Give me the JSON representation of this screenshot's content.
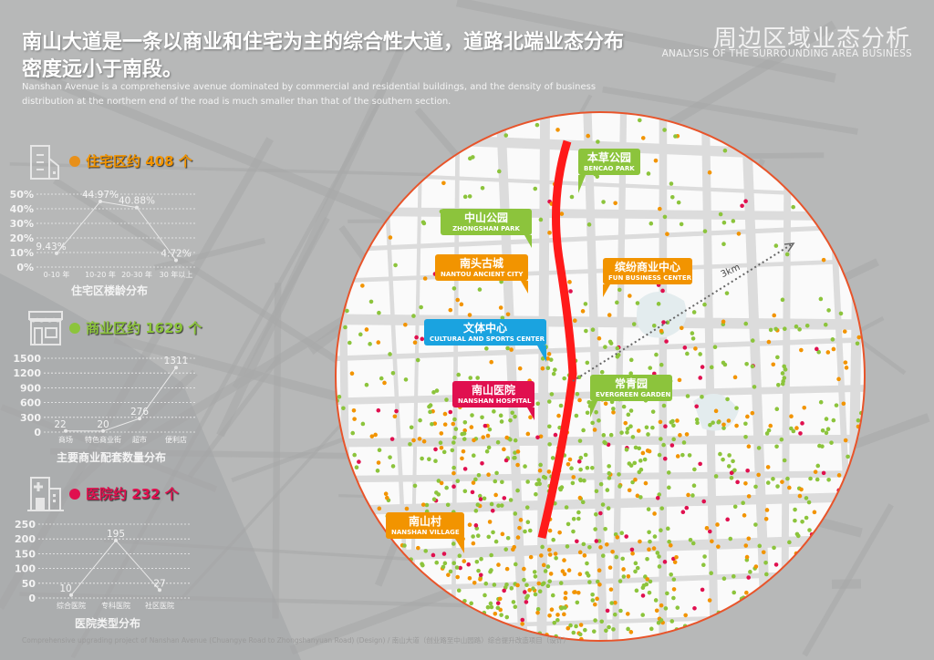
{
  "header": {
    "title": "南山大道是一条以商业和住宅为主的综合性大道，道路北端业态分布密度远小于南段。",
    "subtitle": "Nanshan Avenue is a comprehensive avenue dominated by commercial and residential buildings, and the density of business distribution at the northern end of the road is much smaller than that of the southern section.",
    "section_cn": "周边区域业态分析",
    "section_en": "ANALYSIS OF THE SURROUNDING AREA BUSINESS"
  },
  "stats": [
    {
      "label": "住宅区约 408 个",
      "color": "#e8901a",
      "icon": "residential-building-icon"
    },
    {
      "label": "商业区约 1629 个",
      "color": "#8cc43c",
      "icon": "shop-icon"
    },
    {
      "label": "医院约 232 个",
      "color": "#e0104f",
      "icon": "hospital-icon"
    }
  ],
  "chart_data": [
    {
      "type": "line",
      "title": "住宅区楼龄分布",
      "categories": [
        "0-10 年",
        "10-20 年",
        "20-30 年",
        "30 年以上"
      ],
      "values": [
        9.43,
        44.97,
        40.88,
        4.72
      ],
      "data_labels": [
        "9.43%",
        "44.97%",
        "40.88%",
        "4.72%"
      ],
      "yticks": [
        "0%",
        "10%",
        "20%",
        "30%",
        "40%",
        "50%"
      ],
      "ylim": [
        0,
        50
      ],
      "unit": "%",
      "grid": true
    },
    {
      "type": "line",
      "title": "主要商业配套数量分布",
      "categories": [
        "商场",
        "特色商业街",
        "超市",
        "便利店"
      ],
      "values": [
        22,
        20,
        276,
        1311
      ],
      "data_labels": [
        "22",
        "20",
        "276",
        "1311"
      ],
      "yticks": [
        "0",
        "300",
        "600",
        "900",
        "1200",
        "1500"
      ],
      "ylim": [
        0,
        1500
      ],
      "grid": true
    },
    {
      "type": "line",
      "title": "医院类型分布",
      "categories": [
        "综合医院",
        "专科医院",
        "社区医院"
      ],
      "values": [
        10,
        195,
        27
      ],
      "data_labels": [
        "10",
        "195",
        "27"
      ],
      "yticks": [
        "0",
        "50",
        "100",
        "150",
        "200",
        "250"
      ],
      "ylim": [
        0,
        250
      ],
      "grid": true
    }
  ],
  "map": {
    "scale_label": "3km",
    "colors": {
      "avenue": "#ff1a1a",
      "residential": "#f29400",
      "commercial": "#8cc43c",
      "hospital": "#e0104f",
      "culture": "#1aa3e0",
      "border": "#e8542a"
    },
    "callouts": [
      {
        "cn": "本草公园",
        "en": "BENCAO PARK",
        "color": "#8cc43c"
      },
      {
        "cn": "中山公园",
        "en": "ZHONGSHAN PARK",
        "color": "#8cc43c"
      },
      {
        "cn": "南头古城",
        "en": "NANTOU ANCIENT CITY",
        "color": "#f29400"
      },
      {
        "cn": "缤纷商业中心",
        "en": "FUN BUSINESS CENTER",
        "color": "#f29400"
      },
      {
        "cn": "文体中心",
        "en": "CULTURAL AND SPORTS CENTER",
        "color": "#1aa3e0"
      },
      {
        "cn": "南山医院",
        "en": "NANSHAN HOSPITAL",
        "color": "#e0104f"
      },
      {
        "cn": "常青园",
        "en": "EVERGREEN GARDEN",
        "color": "#8cc43c"
      },
      {
        "cn": "南山村",
        "en": "NANSHAN VILLAGE",
        "color": "#f29400"
      }
    ]
  },
  "footer": "Comprehensive upgrading project of Nanshan Avenue (Chuangye Road to Zhongshanyuan Road) (Design) / 南山大道（创业路至中山园路）综合提升改造项目（设计）"
}
